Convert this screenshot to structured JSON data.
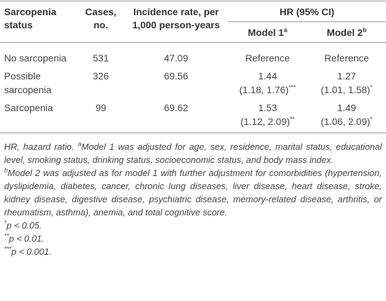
{
  "table": {
    "header": {
      "status": "Sarcopenia status",
      "cases": "Cases, no.",
      "incidence": "Incidence rate, per 1,000 person-years",
      "hr": "HR (95% CI)",
      "model1": "Model 1",
      "model1_note": "a",
      "model2": "Model 2",
      "model2_note": "b"
    },
    "rows": [
      [
        "No sarcopenia",
        "531",
        "47.09",
        {
          "estimate": "Reference"
        },
        {
          "estimate": "Reference"
        }
      ],
      [
        "Possible sarcopenia",
        "326",
        "69.56",
        {
          "estimate": "1.44",
          "ci": "(1.18, 1.76)",
          "sig": "***"
        },
        {
          "estimate": "1.27",
          "ci": "(1.01, 1.58)",
          "sig": "*"
        }
      ],
      [
        "Sarcopenia",
        "99",
        "69.62",
        {
          "estimate": "1.53",
          "ci": "(1.12, 2.09)",
          "sig": "**"
        },
        {
          "estimate": "1.49",
          "ci": "(1.06, 2.09)",
          "sig": "*"
        }
      ]
    ]
  },
  "footnotes": {
    "abbrev": "HR, hazard ratio.",
    "notes": [
      {
        "mark": "a",
        "text": "Model 1 was adjusted for age, sex, residence, marital status, educational level, smoking status, drinking status, socioeconomic status, and body mass index."
      },
      {
        "mark": "b",
        "text": "Model 2 was adjusted as for model 1 with further adjustment for comorbidities (hypertension, dyslipidemia, diabetes, cancer, chronic lung diseases, liver disease, heart disease, stroke, kidney disease, digestive disease, psychiatric disease, memory-related disease, arthritis, or rheumatism, asthma), anemia, and total cognitive score."
      },
      {
        "mark": "*",
        "text": "p < 0.05."
      },
      {
        "mark": "**",
        "text": "p < 0.01."
      },
      {
        "mark": "***",
        "text": "p < 0.001."
      }
    ]
  }
}
